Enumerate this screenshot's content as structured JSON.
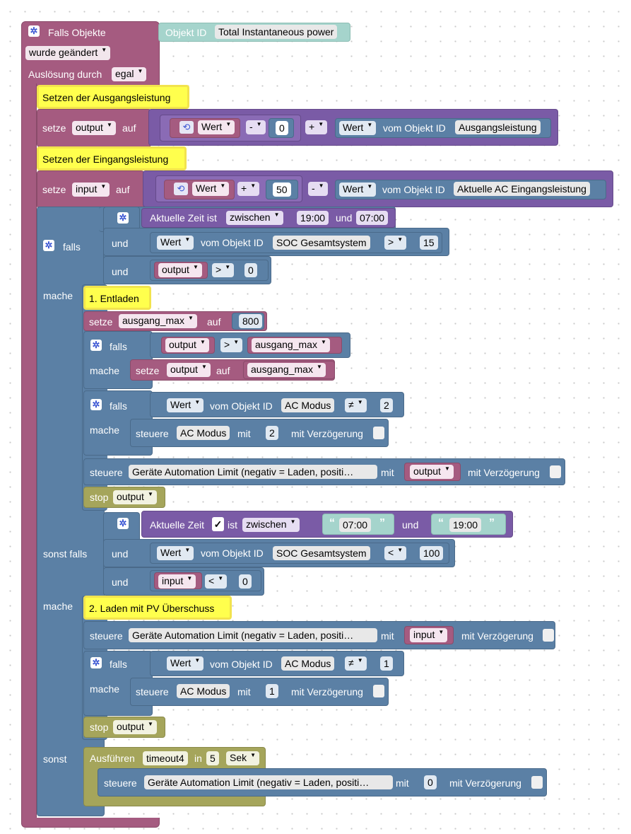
{
  "event": {
    "title": "Falls Objekte",
    "changed": "wurde geändert",
    "trigger_label": "Auslösung durch",
    "trigger_value": "egal",
    "objid_label": "Objekt ID",
    "objid_value": "Total Instantaneous power"
  },
  "common": {
    "setze": "setze",
    "auf": "auf",
    "wert": "Wert",
    "vom_objekt_id": "vom Objekt ID",
    "falls": "falls",
    "und": "und",
    "mache": "mache",
    "sonst_falls": "sonst falls",
    "sonst": "sonst",
    "steuere": "steuere",
    "mit": "mit",
    "mit_verzoegerung": "mit Verzögerung",
    "stop": "stop",
    "zwischen": "zwischen",
    "aktuelle_zeit_ist": "Aktuelle Zeit ist",
    "aktuelle_zeit": "Aktuelle Zeit",
    "ist": "ist",
    "check": "✓",
    "open_quote": "“",
    "close_quote": "”"
  },
  "comment1": "Setzen der Ausgangsleistung",
  "set_output": {
    "var": "output",
    "op1": "-",
    "val1": "0",
    "op2": "+",
    "objid": "Ausgangsleistung"
  },
  "comment2": "Setzen der Eingangsleistung",
  "set_input": {
    "var": "input",
    "op1": "+",
    "val1": "50",
    "op2": "-",
    "objid": "Aktuelle AC Eingangsleistung"
  },
  "if1": {
    "time_from": "19:00",
    "time_and": "und",
    "time_to": "07:00",
    "soc_obj": "SOC Gesamtsystem",
    "soc_op": ">",
    "soc_val": "15",
    "var": "output",
    "var_op": ">",
    "var_val": "0"
  },
  "comment3": "1. Entladen",
  "set_max": {
    "var": "ausgang_max",
    "val": "800"
  },
  "if_max": {
    "var": "output",
    "op": ">",
    "var2": "ausgang_max"
  },
  "if_mode1": {
    "obj": "AC Modus",
    "op": "≠",
    "val": "2",
    "steuere_obj": "AC Modus",
    "steuere_val": "2"
  },
  "steuere_limit": {
    "obj": "Geräte Automation Limit (negativ = Laden, positi…"
  },
  "stop1": "output",
  "elseif": {
    "time_from": "07:00",
    "time_and": "und",
    "time_to": "19:00",
    "soc_obj": "SOC Gesamtsystem",
    "soc_op": "<",
    "soc_val": "100",
    "var": "input",
    "var_op": "<",
    "var_val": "0"
  },
  "comment4": "2. Laden mit PV Überschuss",
  "if_mode2": {
    "obj": "AC Modus",
    "op": "≠",
    "val": "1",
    "steuere_obj": "AC Modus",
    "steuere_val": "1"
  },
  "stop2": "output",
  "timeout": {
    "label": "Ausführen",
    "name": "timeout4",
    "in": "in",
    "val": "5",
    "unit": "Sek",
    "steuere_val": "0"
  },
  "colors": {
    "event": "#a55b80",
    "logic": "#5b80a5",
    "variable": "#a55b80",
    "math": "#7a5ba6",
    "timer": "#a5a55b",
    "comment": "#ffff4d"
  }
}
